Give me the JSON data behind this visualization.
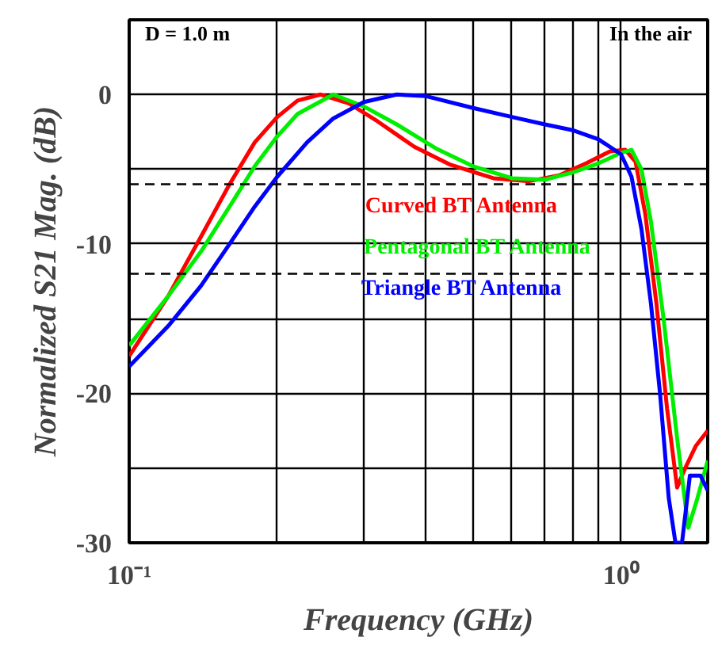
{
  "chart_data": {
    "type": "line",
    "xlabel": "Frequency (GHz)",
    "ylabel": "Normalized S21 Mag. (dB)",
    "log": "x",
    "xlim": [
      0.1,
      1.5
    ],
    "ylim": [
      -30,
      5
    ],
    "xticks": [
      {
        "value": 0.1,
        "label": "10⁻¹"
      },
      {
        "value": 0.2,
        "label": null
      },
      {
        "value": 0.3,
        "label": null
      },
      {
        "value": 0.4,
        "label": null
      },
      {
        "value": 0.5,
        "label": null
      },
      {
        "value": 0.6,
        "label": null
      },
      {
        "value": 0.7,
        "label": null
      },
      {
        "value": 0.8,
        "label": null
      },
      {
        "value": 0.9,
        "label": null
      },
      {
        "value": 1,
        "label": "10⁰"
      }
    ],
    "yticks": [
      -30,
      {
        "value": -25,
        "label": null
      },
      -20,
      {
        "value": -15,
        "label": null
      },
      -10,
      {
        "value": -5,
        "label": null
      },
      0,
      {
        "value": 5,
        "label": null
      }
    ],
    "grid": true,
    "legend": "right",
    "line_style": "solid",
    "marker": "none",
    "annotations": [
      "D = 1.0 m",
      "In the air"
    ],
    "ref_lines": [
      {
        "axis": "y",
        "value": -6,
        "label": null,
        "color": "#000000",
        "line_style": "dashed"
      },
      {
        "axis": "y",
        "value": -12,
        "label": null,
        "color": "#000000",
        "line_style": "dashed"
      }
    ],
    "series": [
      {
        "name": "Curved BT Antenna",
        "color": "#ff0000",
        "x": [
          0.1,
          0.12,
          0.14,
          0.16,
          0.18,
          0.2,
          0.22,
          0.245,
          0.28,
          0.32,
          0.38,
          0.45,
          0.55,
          0.65,
          0.75,
          0.85,
          0.95,
          1.02,
          1.07,
          1.12,
          1.18,
          1.24,
          1.3,
          1.35,
          1.42,
          1.5
        ],
        "values": [
          -17.5,
          -13.5,
          -9.5,
          -6,
          -3.2,
          -1.5,
          -0.4,
          0,
          -0.6,
          -1.8,
          -3.5,
          -4.7,
          -5.6,
          -5.8,
          -5.4,
          -4.6,
          -3.8,
          -3.7,
          -4.5,
          -8,
          -14,
          -21,
          -26.3,
          -25,
          -23.5,
          -22.5
        ]
      },
      {
        "name": "Pentagonal BT Antenna",
        "color": "#00ee00",
        "x": [
          0.1,
          0.12,
          0.14,
          0.16,
          0.18,
          0.2,
          0.22,
          0.26,
          0.3,
          0.35,
          0.42,
          0.5,
          0.6,
          0.7,
          0.8,
          0.9,
          1.0,
          1.05,
          1.1,
          1.15,
          1.22,
          1.3,
          1.37,
          1.43,
          1.5
        ],
        "values": [
          -16.8,
          -13.5,
          -10.5,
          -7.5,
          -4.8,
          -2.8,
          -1.3,
          0,
          -0.8,
          -2,
          -3.6,
          -4.8,
          -5.6,
          -5.7,
          -5.2,
          -4.6,
          -3.9,
          -3.7,
          -5,
          -8.5,
          -15,
          -23,
          -29,
          -27,
          -24.5
        ]
      },
      {
        "name": "Triangle BT Antenna",
        "color": "#0000ff",
        "x": [
          0.1,
          0.12,
          0.14,
          0.16,
          0.18,
          0.2,
          0.23,
          0.26,
          0.3,
          0.35,
          0.4,
          0.5,
          0.6,
          0.7,
          0.8,
          0.9,
          1.0,
          1.05,
          1.1,
          1.15,
          1.2,
          1.25,
          1.29,
          1.33,
          1.38,
          1.45,
          1.5
        ],
        "values": [
          -18.2,
          -15.5,
          -12.8,
          -10,
          -7.5,
          -5.5,
          -3.2,
          -1.6,
          -0.5,
          0,
          -0.1,
          -0.9,
          -1.5,
          -2,
          -2.4,
          -3,
          -4,
          -5.5,
          -9,
          -14,
          -20,
          -27,
          -30,
          -30,
          -25.5,
          -25.5,
          -26.5
        ]
      }
    ]
  }
}
